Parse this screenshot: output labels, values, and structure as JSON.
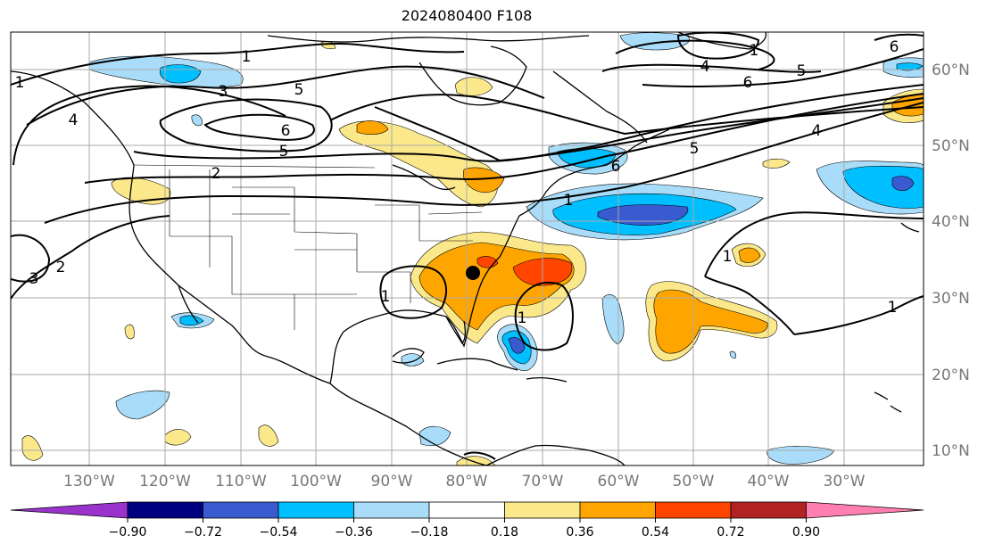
{
  "title": "2024080400 F108",
  "lon_ticks": [
    "130°W",
    "120°W",
    "110°W",
    "100°W",
    "90°W",
    "80°W",
    "70°W",
    "60°W",
    "50°W",
    "40°W",
    "30°W"
  ],
  "lat_ticks": [
    "10°N",
    "20°N",
    "30°N",
    "40°N",
    "50°N",
    "60°N"
  ],
  "colorbar": {
    "tick_labels": [
      "−0.90",
      "−0.72",
      "−0.54",
      "−0.36",
      "−0.18",
      "0.18",
      "0.36",
      "0.54",
      "0.72",
      "0.90"
    ],
    "colors": [
      "#9a33cc",
      "#000080",
      "#3a5bd0",
      "#00bfff",
      "#a8dcf8",
      "#ffffff",
      "#fbe88a",
      "#ffa500",
      "#ff4500",
      "#b22222",
      "#ff80b0"
    ]
  },
  "contour_labels": [
    "1",
    "3",
    "6",
    "5",
    "2",
    "4",
    "6",
    "5",
    "4",
    "6",
    "5",
    "6",
    "1",
    "4",
    "5",
    "1",
    "1",
    "1",
    "1",
    "3",
    "2",
    "1",
    "1"
  ],
  "storm_marker": {
    "lon": "80°W",
    "lat": "33°N"
  }
}
